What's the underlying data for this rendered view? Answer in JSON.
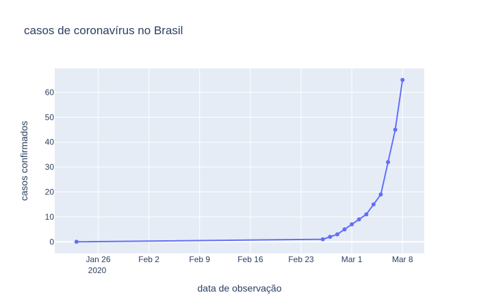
{
  "chart_data": {
    "type": "line",
    "title": "casos de coronavírus no Brasil",
    "xlabel": "data de observação",
    "ylabel": "casos confirmados",
    "x_tick_labels": [
      "Jan 26",
      "Feb 2",
      "Feb 9",
      "Feb 16",
      "Feb 23",
      "Mar 1",
      "Mar 8"
    ],
    "x_tick_dates": [
      "2020-01-26",
      "2020-02-02",
      "2020-02-09",
      "2020-02-16",
      "2020-02-23",
      "2020-03-01",
      "2020-03-08"
    ],
    "x_year_label": "2020",
    "y_ticks": [
      0,
      10,
      20,
      30,
      40,
      50,
      60
    ],
    "xlim": [
      "2020-01-20",
      "2020-03-11"
    ],
    "ylim": [
      -4.6,
      69.6
    ],
    "grid": true,
    "colors": {
      "line": "#636efa",
      "plot_bg": "#e5ecf6",
      "grid": "#ffffff",
      "text": "#2a3f5f"
    },
    "series": [
      {
        "x": [
          "2020-01-23",
          "2020-02-26",
          "2020-02-27",
          "2020-02-28",
          "2020-02-29",
          "2020-03-01",
          "2020-03-02",
          "2020-03-03",
          "2020-03-04",
          "2020-03-05",
          "2020-03-06",
          "2020-03-07",
          "2020-03-08"
        ],
        "values": [
          0,
          1,
          2,
          3,
          5,
          7,
          9,
          11,
          15,
          19,
          32,
          45,
          65
        ]
      }
    ]
  }
}
